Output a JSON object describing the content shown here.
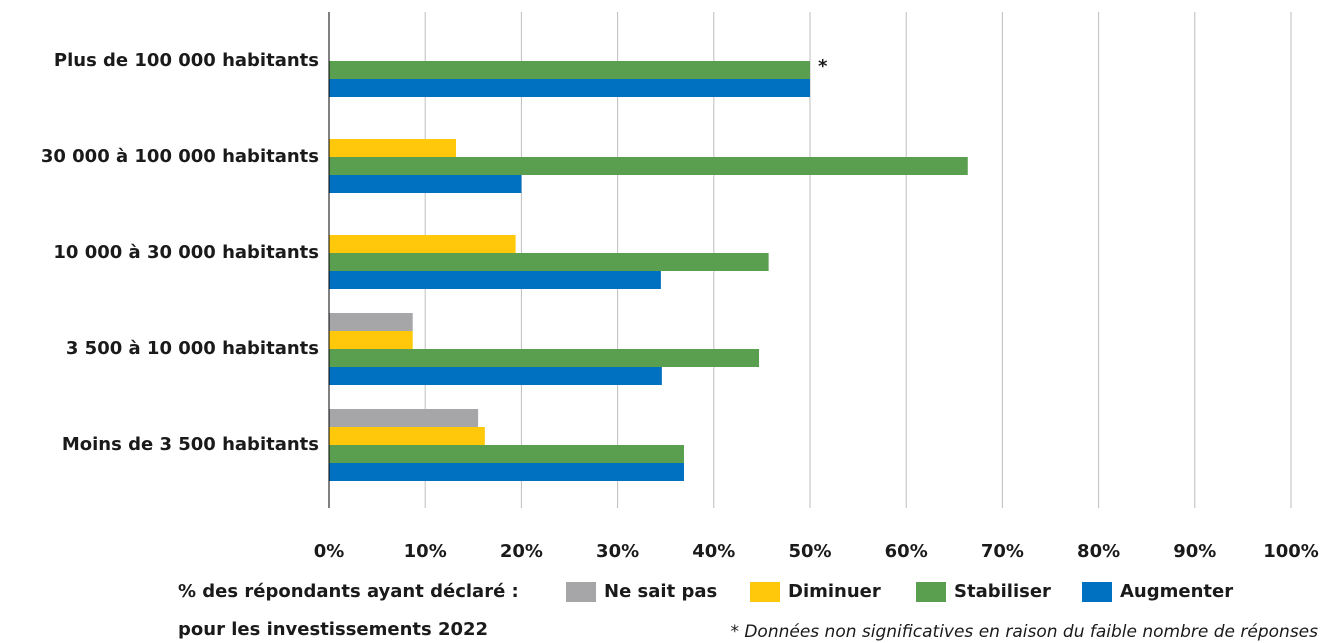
{
  "chart_data": {
    "type": "hbar",
    "categories": [
      "Plus de 100 000 habitants",
      "30 000 à 100 000 habitants",
      "10 000 à 30 000 habitants",
      "3 500 à 10 000 habitants",
      "Moins de 3 500 habitants"
    ],
    "series": [
      {
        "name": "Ne sait pas",
        "color": "#a6a6a8",
        "values": [
          0,
          0,
          0,
          8.7,
          15.5
        ]
      },
      {
        "name": "Diminuer",
        "color": "#ffc80a",
        "values": [
          0,
          13.2,
          19.4,
          8.7,
          16.2
        ]
      },
      {
        "name": "Stabiliser",
        "color": "#5a9e4f",
        "values": [
          50,
          66.4,
          45.7,
          44.7,
          36.9
        ]
      },
      {
        "name": "Augmenter",
        "color": "#0070c0",
        "values": [
          50,
          20,
          34.5,
          34.6,
          36.9
        ]
      }
    ],
    "xlim": [
      0,
      100
    ],
    "xticks": [
      {
        "value": 0,
        "label": "0%"
      },
      {
        "value": 10,
        "label": "10%"
      },
      {
        "value": 20,
        "label": "20%"
      },
      {
        "value": 30,
        "label": "30%"
      },
      {
        "value": 40,
        "label": "40%"
      },
      {
        "value": 50,
        "label": "50%"
      },
      {
        "value": 60,
        "label": "60%"
      },
      {
        "value": 70,
        "label": "70%"
      },
      {
        "value": 80,
        "label": "80%"
      },
      {
        "value": 90,
        "label": "90%"
      },
      {
        "value": 100,
        "label": "100%"
      }
    ],
    "grid": true,
    "annotation": "*",
    "legend_title": [
      "% des répondants ayant déclaré :",
      "pour les investissements 2022"
    ],
    "footnote": "* Données non significatives en raison du faible nombre de réponses"
  }
}
